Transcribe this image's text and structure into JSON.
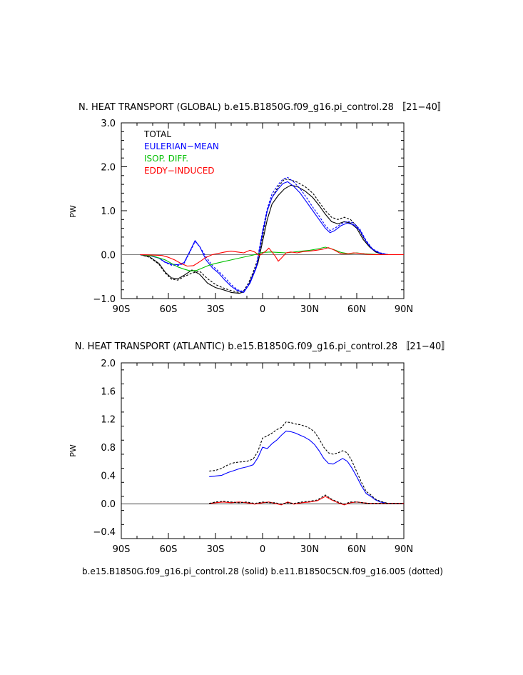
{
  "footer": "b.e15.B1850G.f09_g16.pi_control.28 (solid) b.e11.B1850C5CN.f09_g16.005 (dotted)",
  "chart_data": [
    {
      "type": "line",
      "title": "N. HEAT TRANSPORT (GLOBAL) b.e15.B1850G.f09_g16.pi_control.28 〚21−40〛",
      "xlabel": "",
      "ylabel": "PW",
      "xlim": [
        -90,
        90
      ],
      "ylim": [
        -1.0,
        3.0
      ],
      "xticks": [
        -90,
        -60,
        -30,
        0,
        30,
        60,
        90
      ],
      "xtick_labels": [
        "90S",
        "60S",
        "30S",
        "0",
        "30N",
        "60N",
        "90N"
      ],
      "yticks": [
        -1.0,
        0.0,
        1.0,
        2.0,
        3.0
      ],
      "ytick_labels": [
        "−1.0",
        "0.0",
        "1.0",
        "2.0",
        "3.0"
      ],
      "legend": [
        "TOTAL",
        "EULERIAN−MEAN",
        "ISOP. DIFF.",
        "EDDY−INDUCED"
      ],
      "legend_position": "top-left",
      "series": [
        {
          "legend": 0,
          "color": "#000000",
          "dash": false,
          "x": [
            -78,
            -72,
            -66,
            -62,
            -58,
            -54,
            -50,
            -45,
            -40,
            -35,
            -30,
            -25,
            -20,
            -15,
            -12,
            -9,
            -6,
            -3,
            0,
            3,
            6,
            10,
            14,
            18,
            22,
            27,
            32,
            36,
            40,
            44,
            48,
            52,
            56,
            60,
            64,
            68,
            72,
            76,
            80,
            85,
            90
          ],
          "y": [
            0,
            -0.05,
            -0.2,
            -0.4,
            -0.53,
            -0.55,
            -0.47,
            -0.35,
            -0.45,
            -0.65,
            -0.75,
            -0.8,
            -0.86,
            -0.88,
            -0.85,
            -0.7,
            -0.45,
            -0.2,
            0.3,
            0.8,
            1.15,
            1.35,
            1.5,
            1.58,
            1.55,
            1.45,
            1.3,
            1.12,
            0.92,
            0.75,
            0.7,
            0.75,
            0.72,
            0.6,
            0.35,
            0.18,
            0.06,
            0.01,
            0,
            0,
            0
          ]
        },
        {
          "legend": 0,
          "color": "#000000",
          "dash": true,
          "x": [
            -78,
            -72,
            -66,
            -62,
            -58,
            -54,
            -50,
            -45,
            -40,
            -35,
            -30,
            -25,
            -20,
            -15,
            -12,
            -9,
            -6,
            -3,
            0,
            3,
            6,
            10,
            14,
            18,
            22,
            27,
            32,
            36,
            40,
            44,
            48,
            52,
            56,
            60,
            64,
            68,
            72,
            76,
            80,
            85,
            90
          ],
          "y": [
            0,
            -0.06,
            -0.22,
            -0.42,
            -0.56,
            -0.58,
            -0.5,
            -0.42,
            -0.38,
            -0.55,
            -0.68,
            -0.76,
            -0.82,
            -0.86,
            -0.82,
            -0.65,
            -0.4,
            -0.1,
            0.4,
            1.0,
            1.3,
            1.55,
            1.72,
            1.7,
            1.65,
            1.55,
            1.4,
            1.2,
            1.0,
            0.85,
            0.8,
            0.85,
            0.8,
            0.65,
            0.4,
            0.2,
            0.07,
            0.02,
            0,
            0,
            0
          ]
        },
        {
          "legend": 1,
          "color": "#0000ff",
          "dash": false,
          "x": [
            -78,
            -72,
            -66,
            -62,
            -58,
            -54,
            -50,
            -46,
            -43,
            -40,
            -36,
            -32,
            -28,
            -24,
            -20,
            -16,
            -12,
            -8,
            -4,
            0,
            3,
            6,
            10,
            13,
            16,
            20,
            24,
            28,
            32,
            36,
            40,
            43,
            46,
            50,
            54,
            58,
            62,
            66,
            70,
            75,
            80,
            85,
            90
          ],
          "y": [
            0,
            -0.02,
            -0.08,
            -0.17,
            -0.22,
            -0.23,
            -0.18,
            0.1,
            0.32,
            0.18,
            -0.12,
            -0.3,
            -0.42,
            -0.58,
            -0.72,
            -0.82,
            -0.86,
            -0.65,
            -0.3,
            0.5,
            1.0,
            1.3,
            1.5,
            1.62,
            1.66,
            1.55,
            1.4,
            1.2,
            1.0,
            0.8,
            0.6,
            0.5,
            0.55,
            0.66,
            0.72,
            0.68,
            0.55,
            0.3,
            0.12,
            0.03,
            0,
            0,
            0
          ]
        },
        {
          "legend": 1,
          "color": "#0000ff",
          "dash": true,
          "x": [
            -78,
            -72,
            -66,
            -62,
            -58,
            -54,
            -50,
            -46,
            -43,
            -40,
            -36,
            -32,
            -28,
            -24,
            -20,
            -16,
            -12,
            -8,
            -4,
            0,
            3,
            6,
            10,
            13,
            16,
            20,
            24,
            28,
            32,
            36,
            40,
            43,
            46,
            50,
            54,
            58,
            62,
            66,
            70,
            75,
            80,
            85,
            90
          ],
          "y": [
            0,
            -0.02,
            -0.08,
            -0.18,
            -0.24,
            -0.25,
            -0.2,
            0.08,
            0.3,
            0.18,
            -0.05,
            -0.25,
            -0.38,
            -0.52,
            -0.68,
            -0.8,
            -0.84,
            -0.62,
            -0.25,
            0.55,
            1.05,
            1.38,
            1.6,
            1.72,
            1.76,
            1.65,
            1.5,
            1.3,
            1.08,
            0.88,
            0.66,
            0.55,
            0.6,
            0.7,
            0.76,
            0.72,
            0.58,
            0.32,
            0.13,
            0.04,
            0,
            0,
            0
          ]
        },
        {
          "legend": 2,
          "color": "#00c000",
          "dash": false,
          "x": [
            -78,
            -70,
            -62,
            -58,
            -54,
            -50,
            -46,
            -42,
            -38,
            -34,
            -30,
            -25,
            -20,
            -15,
            -10,
            -6,
            -3,
            0,
            5,
            10,
            15,
            20,
            25,
            30,
            35,
            40,
            45,
            50,
            55,
            60,
            65,
            70,
            75,
            80,
            85,
            90
          ],
          "y": [
            0,
            -0.03,
            -0.12,
            -0.2,
            -0.28,
            -0.33,
            -0.37,
            -0.36,
            -0.3,
            -0.24,
            -0.2,
            -0.16,
            -0.12,
            -0.08,
            -0.04,
            -0.01,
            0.02,
            0.05,
            0.06,
            0.05,
            0.04,
            0.06,
            0.08,
            0.1,
            0.13,
            0.17,
            0.12,
            0.05,
            0.02,
            0.04,
            0.02,
            0.01,
            0,
            0,
            0,
            0
          ]
        },
        {
          "legend": 3,
          "color": "#ff0000",
          "dash": false,
          "x": [
            -78,
            -70,
            -64,
            -60,
            -56,
            -52,
            -48,
            -44,
            -40,
            -36,
            -32,
            -28,
            -24,
            -20,
            -16,
            -12,
            -8,
            -5,
            -2,
            0,
            2,
            4,
            6,
            8,
            10,
            12,
            15,
            18,
            22,
            26,
            30,
            34,
            38,
            42,
            46,
            50,
            54,
            58,
            62,
            66,
            70,
            75,
            80,
            85,
            90
          ],
          "y": [
            0,
            -0.01,
            -0.02,
            -0.06,
            -0.12,
            -0.2,
            -0.26,
            -0.25,
            -0.16,
            -0.06,
            0,
            0.03,
            0.06,
            0.08,
            0.06,
            0.04,
            0.1,
            0.06,
            -0.02,
            0.03,
            0.08,
            0.15,
            0.06,
            -0.03,
            -0.15,
            -0.08,
            0.04,
            0.06,
            0.04,
            0.07,
            0.08,
            0.1,
            0.12,
            0.16,
            0.1,
            0.02,
            0.02,
            0.04,
            0.03,
            0.01,
            0,
            0,
            0,
            0,
            0
          ]
        }
      ]
    },
    {
      "type": "line",
      "title": "N. HEAT TRANSPORT (ATLANTIC) b.e15.B1850G.f09_g16.pi_control.28 〚21−40〛",
      "xlabel": "",
      "ylabel": "PW",
      "xlim": [
        -90,
        90
      ],
      "ylim": [
        -0.5,
        2.0
      ],
      "xticks": [
        -90,
        -60,
        -30,
        0,
        30,
        60,
        90
      ],
      "xtick_labels": [
        "90S",
        "60S",
        "30S",
        "0",
        "30N",
        "60N",
        "90N"
      ],
      "yticks": [
        -0.4,
        0.0,
        0.4,
        0.8,
        1.2,
        1.6,
        2.0
      ],
      "ytick_labels": [
        "−0.4",
        "0.0",
        "0.4",
        "0.8",
        "1.2",
        "1.6",
        "2.0"
      ],
      "series": [
        {
          "color": "#0000ff",
          "dash": false,
          "x": [
            -34,
            -30,
            -26,
            -22,
            -18,
            -14,
            -10,
            -6,
            -3,
            0,
            3,
            6,
            9,
            12,
            15,
            18,
            21,
            24,
            27,
            30,
            33,
            36,
            39,
            42,
            45,
            48,
            51,
            54,
            57,
            60,
            63,
            66,
            69,
            72,
            75,
            80,
            85,
            90
          ],
          "y": [
            0.38,
            0.39,
            0.4,
            0.44,
            0.47,
            0.5,
            0.52,
            0.55,
            0.65,
            0.8,
            0.78,
            0.85,
            0.9,
            0.97,
            1.03,
            1.02,
            1.0,
            0.97,
            0.94,
            0.9,
            0.84,
            0.75,
            0.64,
            0.57,
            0.56,
            0.6,
            0.64,
            0.6,
            0.5,
            0.38,
            0.25,
            0.14,
            0.1,
            0.05,
            0.02,
            0,
            0,
            0
          ]
        },
        {
          "color": "#000000",
          "dash": true,
          "x": [
            -34,
            -30,
            -26,
            -22,
            -18,
            -14,
            -10,
            -6,
            -3,
            0,
            3,
            6,
            9,
            12,
            15,
            18,
            21,
            24,
            27,
            30,
            33,
            36,
            39,
            42,
            45,
            48,
            51,
            54,
            57,
            60,
            63,
            66,
            69,
            72,
            75,
            80,
            85,
            90
          ],
          "y": [
            0.46,
            0.47,
            0.5,
            0.55,
            0.58,
            0.59,
            0.6,
            0.63,
            0.74,
            0.93,
            0.96,
            1.0,
            1.05,
            1.08,
            1.16,
            1.15,
            1.13,
            1.12,
            1.1,
            1.07,
            1.02,
            0.92,
            0.8,
            0.72,
            0.7,
            0.72,
            0.75,
            0.72,
            0.6,
            0.45,
            0.3,
            0.17,
            0.12,
            0.06,
            0.03,
            0,
            0,
            0
          ]
        },
        {
          "color": "#ff0000",
          "dash": false,
          "x": [
            -34,
            -30,
            -25,
            -20,
            -15,
            -10,
            -5,
            0,
            4,
            8,
            12,
            16,
            20,
            25,
            30,
            35,
            40,
            44,
            48,
            52,
            56,
            60,
            64,
            68,
            72,
            76,
            80,
            85,
            90
          ],
          "y": [
            0,
            0.01,
            0.02,
            0.01,
            0.02,
            0.01,
            -0.01,
            0.01,
            0.02,
            0,
            -0.02,
            0.02,
            -0.01,
            0.01,
            0.02,
            0.04,
            0.1,
            0.05,
            0.01,
            -0.02,
            0.01,
            0.02,
            0.01,
            0,
            0,
            0,
            0,
            0,
            0
          ]
        },
        {
          "color": "#000000",
          "dash": true,
          "x": [
            -34,
            -30,
            -25,
            -20,
            -15,
            -10,
            -5,
            0,
            4,
            8,
            12,
            16,
            20,
            25,
            30,
            35,
            40,
            44,
            48,
            52,
            56,
            60,
            64,
            68,
            72,
            76,
            80,
            85,
            90
          ],
          "y": [
            0,
            0.02,
            0.03,
            0.02,
            0.01,
            0.02,
            0,
            0.02,
            0.01,
            0.01,
            -0.01,
            0.01,
            0,
            0.02,
            0.03,
            0.05,
            0.12,
            0.06,
            0.02,
            -0.01,
            0.02,
            0.02,
            0.01,
            0,
            0,
            0,
            0,
            0,
            0
          ]
        }
      ]
    }
  ]
}
